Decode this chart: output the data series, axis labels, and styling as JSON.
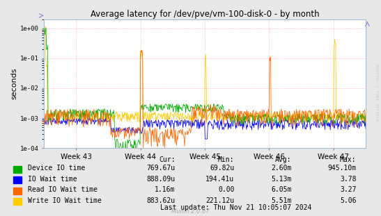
{
  "title": "Average latency for /dev/pve/vm-100-disk-0 - by month",
  "ylabel": "seconds",
  "watermark": "RRDTOOL / TOBI OETIKER",
  "muninver": "Munin 2.0.67",
  "last_update": "Last update: Thu Nov 21 10:05:07 2024",
  "bg_color": "#e8e8e8",
  "plot_bg_color": "#ffffff",
  "grid_color": "#ffaaaa",
  "x_ticks": [
    "Week 43",
    "Week 44",
    "Week 45",
    "Week 46",
    "Week 47"
  ],
  "x_tick_pos": [
    0.1,
    0.3,
    0.5,
    0.7,
    0.9
  ],
  "ylim_min": 0.0001,
  "ylim_max": 1.5,
  "legend": [
    {
      "label": "Device IO time",
      "color": "#00aa00"
    },
    {
      "label": "IO Wait time",
      "color": "#0000ff"
    },
    {
      "label": "Read IO Wait time",
      "color": "#ff6600"
    },
    {
      "label": "Write IO Wait time",
      "color": "#ffcc00"
    }
  ],
  "stats_headers": [
    "Cur:",
    "Min:",
    "Avg:",
    "Max:"
  ],
  "stats": [
    [
      "769.67u",
      "69.82u",
      "2.60m",
      "945.10m"
    ],
    [
      "888.09u",
      "194.41u",
      "5.13m",
      "3.78"
    ],
    [
      "1.16m",
      "0.00",
      "6.05m",
      "3.27"
    ],
    [
      "883.62u",
      "221.12u",
      "5.51m",
      "5.06"
    ]
  ]
}
